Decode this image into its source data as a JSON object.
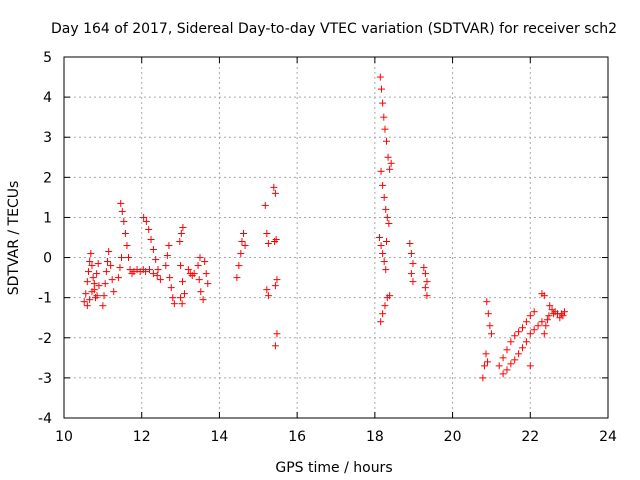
{
  "chart_data": {
    "type": "scatter",
    "title": "Day 164 of 2017, Sidereal Day-to-day VTEC variation (SDTVAR) for receiver sch2",
    "xlabel": "GPS time / hours",
    "ylabel": "SDTVAR / TECUs",
    "xlim": [
      10,
      24
    ],
    "ylim": [
      -4,
      5
    ],
    "x_ticks": [
      10,
      12,
      14,
      16,
      18,
      20,
      22,
      24
    ],
    "y_ticks": [
      -4,
      -3,
      -2,
      -1,
      0,
      1,
      2,
      3,
      4,
      5
    ],
    "x_tick_labels": [
      "10",
      "12",
      "14",
      "16",
      "18",
      "20",
      "22",
      "24"
    ],
    "y_tick_labels": [
      "-4",
      "-3",
      "-2",
      "-1",
      "0",
      "1",
      "2",
      "3",
      "4",
      "5"
    ],
    "grid": true,
    "marker": "+",
    "marker_color": "#ff0000",
    "series": [
      {
        "name": "SDTVAR",
        "points": [
          [
            10.52,
            -1.1
          ],
          [
            10.56,
            -0.9
          ],
          [
            10.6,
            -0.6
          ],
          [
            10.63,
            -0.35
          ],
          [
            10.66,
            -0.1
          ],
          [
            10.69,
            0.1
          ],
          [
            10.72,
            -0.2
          ],
          [
            10.75,
            -0.5
          ],
          [
            10.78,
            -0.8
          ],
          [
            10.81,
            -1.0
          ],
          [
            10.6,
            -1.2
          ],
          [
            10.66,
            -1.05
          ],
          [
            10.72,
            -0.85
          ],
          [
            10.78,
            -0.65
          ],
          [
            10.84,
            -0.4
          ],
          [
            10.88,
            -0.15
          ],
          [
            10.85,
            -0.95
          ],
          [
            10.9,
            -0.7
          ],
          [
            11.0,
            -1.2
          ],
          [
            11.03,
            -0.95
          ],
          [
            11.06,
            -0.65
          ],
          [
            11.09,
            -0.35
          ],
          [
            11.12,
            -0.1
          ],
          [
            11.15,
            0.15
          ],
          [
            11.2,
            -0.2
          ],
          [
            11.24,
            -0.55
          ],
          [
            11.28,
            -0.85
          ],
          [
            11.4,
            -0.5
          ],
          [
            11.44,
            -0.25
          ],
          [
            11.48,
            0.0
          ],
          [
            11.46,
            1.35
          ],
          [
            11.5,
            1.15
          ],
          [
            11.54,
            0.9
          ],
          [
            11.58,
            0.6
          ],
          [
            11.62,
            0.3
          ],
          [
            11.66,
            0.0
          ],
          [
            11.7,
            -0.3
          ],
          [
            11.75,
            -0.4
          ],
          [
            11.8,
            -0.35
          ],
          [
            11.88,
            -0.3
          ],
          [
            11.96,
            -0.35
          ],
          [
            12.04,
            -0.3
          ],
          [
            12.1,
            -0.35
          ],
          [
            12.05,
            1.0
          ],
          [
            12.12,
            0.9
          ],
          [
            12.18,
            0.7
          ],
          [
            12.24,
            0.45
          ],
          [
            12.3,
            0.2
          ],
          [
            12.36,
            -0.05
          ],
          [
            12.42,
            -0.3
          ],
          [
            12.48,
            -0.55
          ],
          [
            12.2,
            -0.3
          ],
          [
            12.3,
            -0.4
          ],
          [
            12.4,
            -0.45
          ],
          [
            12.62,
            -0.2
          ],
          [
            12.66,
            0.05
          ],
          [
            12.7,
            0.3
          ],
          [
            12.72,
            -0.5
          ],
          [
            12.76,
            -0.75
          ],
          [
            12.8,
            -1.0
          ],
          [
            12.84,
            -1.15
          ],
          [
            12.98,
            0.4
          ],
          [
            13.02,
            0.6
          ],
          [
            13.06,
            0.75
          ],
          [
            13.0,
            -0.2
          ],
          [
            13.05,
            -0.6
          ],
          [
            13.1,
            -0.9
          ],
          [
            13.0,
            -1.0
          ],
          [
            13.04,
            -1.15
          ],
          [
            13.2,
            -0.3
          ],
          [
            13.25,
            -0.4
          ],
          [
            13.3,
            -0.45
          ],
          [
            13.35,
            -0.4
          ],
          [
            13.45,
            -0.2
          ],
          [
            13.5,
            0.0
          ],
          [
            13.48,
            -0.55
          ],
          [
            13.52,
            -0.85
          ],
          [
            13.58,
            -1.05
          ],
          [
            13.62,
            -0.1
          ],
          [
            13.66,
            -0.4
          ],
          [
            13.7,
            -0.65
          ],
          [
            14.45,
            -0.5
          ],
          [
            14.5,
            -0.2
          ],
          [
            14.55,
            0.1
          ],
          [
            14.58,
            0.4
          ],
          [
            14.62,
            0.6
          ],
          [
            14.66,
            0.3
          ],
          [
            15.18,
            1.3
          ],
          [
            15.22,
            0.6
          ],
          [
            15.26,
            0.35
          ],
          [
            15.22,
            -0.8
          ],
          [
            15.26,
            -0.95
          ],
          [
            15.4,
            1.75
          ],
          [
            15.44,
            1.6
          ],
          [
            15.42,
            0.4
          ],
          [
            15.46,
            0.45
          ],
          [
            15.44,
            -0.7
          ],
          [
            15.48,
            -0.55
          ],
          [
            15.44,
            -2.2
          ],
          [
            15.48,
            -1.9
          ],
          [
            18.14,
            4.5
          ],
          [
            18.17,
            4.2
          ],
          [
            18.2,
            3.85
          ],
          [
            18.23,
            3.5
          ],
          [
            18.26,
            3.2
          ],
          [
            18.3,
            2.9
          ],
          [
            18.34,
            2.5
          ],
          [
            18.38,
            2.2
          ],
          [
            18.42,
            2.35
          ],
          [
            18.16,
            2.15
          ],
          [
            18.2,
            1.8
          ],
          [
            18.24,
            1.5
          ],
          [
            18.28,
            1.2
          ],
          [
            18.32,
            1.0
          ],
          [
            18.36,
            0.85
          ],
          [
            18.12,
            0.5
          ],
          [
            18.16,
            0.3
          ],
          [
            18.2,
            0.1
          ],
          [
            18.24,
            -0.1
          ],
          [
            18.28,
            -0.3
          ],
          [
            18.3,
            0.4
          ],
          [
            18.15,
            -1.6
          ],
          [
            18.2,
            -1.4
          ],
          [
            18.26,
            -1.2
          ],
          [
            18.32,
            -1.0
          ],
          [
            18.38,
            -0.95
          ],
          [
            18.9,
            0.35
          ],
          [
            18.94,
            0.1
          ],
          [
            18.98,
            -0.15
          ],
          [
            18.94,
            -0.4
          ],
          [
            18.98,
            -0.6
          ],
          [
            19.26,
            -0.25
          ],
          [
            19.3,
            -0.4
          ],
          [
            19.34,
            -0.6
          ],
          [
            19.3,
            -0.75
          ],
          [
            19.34,
            -0.95
          ],
          [
            20.78,
            -3.0
          ],
          [
            20.82,
            -2.7
          ],
          [
            20.86,
            -2.4
          ],
          [
            20.9,
            -2.6
          ],
          [
            20.88,
            -1.1
          ],
          [
            20.92,
            -1.4
          ],
          [
            20.96,
            -1.7
          ],
          [
            21.0,
            -1.9
          ],
          [
            21.2,
            -2.7
          ],
          [
            21.3,
            -2.9
          ],
          [
            21.4,
            -2.8
          ],
          [
            21.5,
            -2.65
          ],
          [
            21.6,
            -2.55
          ],
          [
            21.7,
            -2.4
          ],
          [
            21.8,
            -2.25
          ],
          [
            21.9,
            -2.1
          ],
          [
            22.0,
            -1.9
          ],
          [
            22.1,
            -1.8
          ],
          [
            22.2,
            -1.7
          ],
          [
            22.3,
            -1.6
          ],
          [
            21.3,
            -2.5
          ],
          [
            21.4,
            -2.3
          ],
          [
            21.5,
            -2.1
          ],
          [
            21.6,
            -1.95
          ],
          [
            21.7,
            -1.85
          ],
          [
            21.8,
            -1.75
          ],
          [
            21.9,
            -1.6
          ],
          [
            22.0,
            -1.45
          ],
          [
            22.1,
            -1.35
          ],
          [
            22.0,
            -2.7
          ],
          [
            22.36,
            -1.9
          ],
          [
            22.4,
            -1.7
          ],
          [
            22.44,
            -1.55
          ],
          [
            22.48,
            -1.45
          ],
          [
            22.3,
            -0.9
          ],
          [
            22.36,
            -0.95
          ],
          [
            22.5,
            -1.2
          ],
          [
            22.56,
            -1.3
          ],
          [
            22.6,
            -1.4
          ],
          [
            22.64,
            -1.35
          ],
          [
            22.7,
            -1.4
          ],
          [
            22.76,
            -1.5
          ],
          [
            22.8,
            -1.4
          ],
          [
            22.84,
            -1.45
          ],
          [
            22.88,
            -1.35
          ]
        ]
      }
    ]
  }
}
